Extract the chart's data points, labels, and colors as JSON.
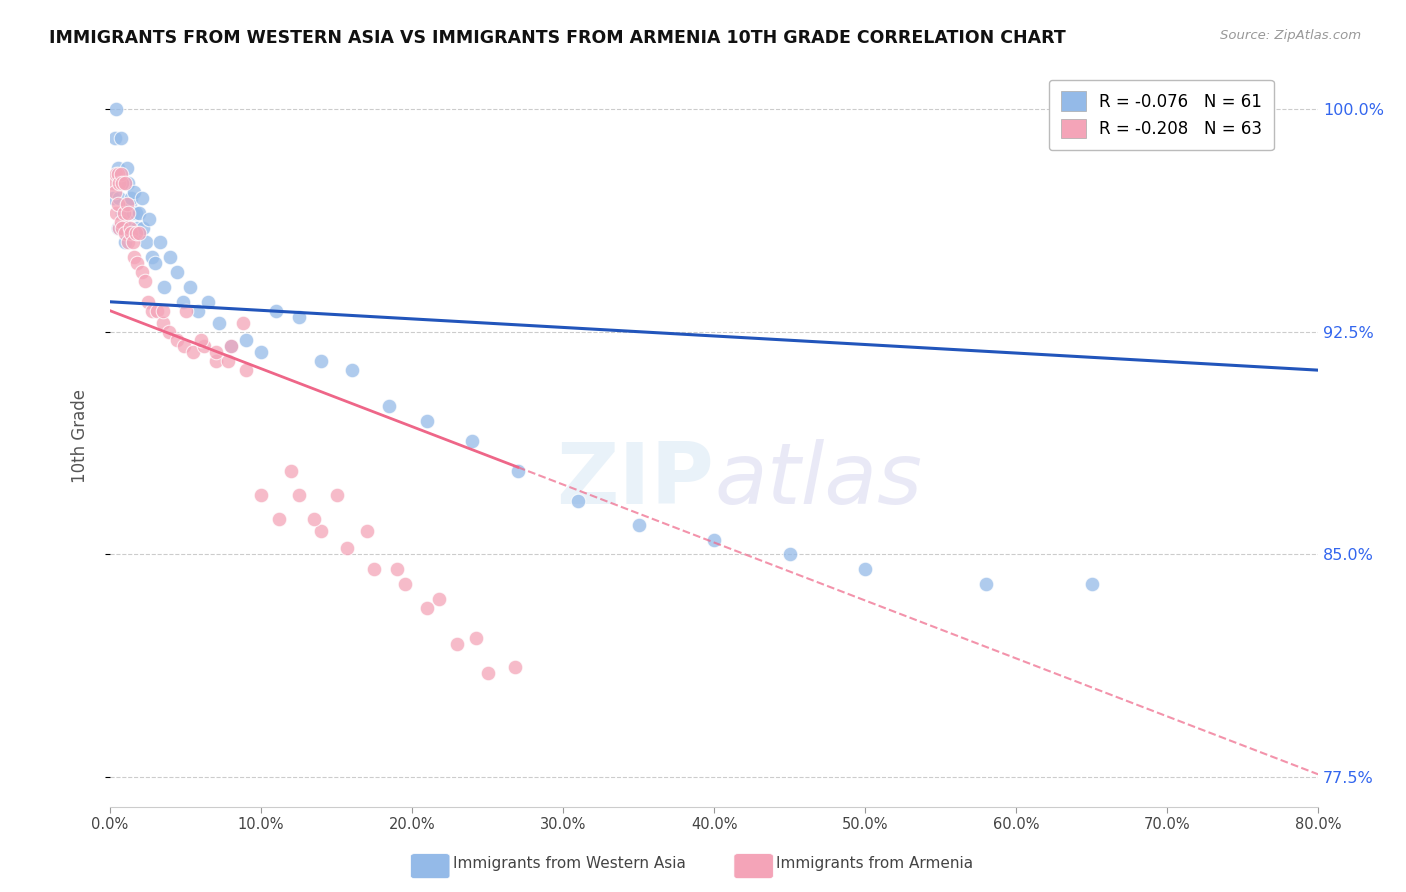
{
  "title": "IMMIGRANTS FROM WESTERN ASIA VS IMMIGRANTS FROM ARMENIA 10TH GRADE CORRELATION CHART",
  "source": "Source: ZipAtlas.com",
  "ylabel": "10th Grade",
  "yaxis_labels": [
    "77.5%",
    "85.0%",
    "92.5%",
    "100.0%"
  ],
  "yaxis_values": [
    0.775,
    0.85,
    0.925,
    1.0
  ],
  "xaxis_ticks": [
    0.0,
    0.1,
    0.2,
    0.3,
    0.4,
    0.5,
    0.6,
    0.7,
    0.8
  ],
  "legend_blue_r": "-0.076",
  "legend_blue_n": "61",
  "legend_pink_r": "-0.208",
  "legend_pink_n": "63",
  "blue_color": "#94BAE8",
  "pink_color": "#F4A4B8",
  "blue_line_color": "#2255BB",
  "pink_line_color": "#EE6688",
  "blue_line_x0": 0.0,
  "blue_line_y0": 0.935,
  "blue_line_x1": 0.8,
  "blue_line_y1": 0.912,
  "pink_line_x0": 0.0,
  "pink_line_y0": 0.932,
  "pink_line_x1": 0.8,
  "pink_line_y1": 0.776,
  "blue_scatter_x": [
    0.002,
    0.003,
    0.004,
    0.005,
    0.005,
    0.006,
    0.007,
    0.007,
    0.008,
    0.008,
    0.009,
    0.009,
    0.01,
    0.01,
    0.011,
    0.011,
    0.012,
    0.012,
    0.013,
    0.013,
    0.014,
    0.015,
    0.016,
    0.017,
    0.018,
    0.019,
    0.02,
    0.021,
    0.022,
    0.024,
    0.026,
    0.028,
    0.03,
    0.033,
    0.036,
    0.04,
    0.044,
    0.048,
    0.053,
    0.058,
    0.065,
    0.072,
    0.08,
    0.09,
    0.1,
    0.11,
    0.125,
    0.14,
    0.16,
    0.185,
    0.21,
    0.24,
    0.27,
    0.31,
    0.35,
    0.4,
    0.45,
    0.5,
    0.58,
    0.65,
    0.76
  ],
  "blue_scatter_y": [
    0.97,
    0.99,
    1.0,
    0.98,
    0.96,
    0.97,
    0.975,
    0.99,
    0.975,
    0.965,
    0.975,
    0.96,
    0.975,
    0.955,
    0.98,
    0.96,
    0.968,
    0.975,
    0.968,
    0.958,
    0.97,
    0.965,
    0.972,
    0.965,
    0.96,
    0.965,
    0.958,
    0.97,
    0.96,
    0.955,
    0.963,
    0.95,
    0.948,
    0.955,
    0.94,
    0.95,
    0.945,
    0.935,
    0.94,
    0.932,
    0.935,
    0.928,
    0.92,
    0.922,
    0.918,
    0.932,
    0.93,
    0.915,
    0.912,
    0.9,
    0.895,
    0.888,
    0.878,
    0.868,
    0.86,
    0.855,
    0.85,
    0.845,
    0.84,
    0.84,
    1.0
  ],
  "pink_scatter_x": [
    0.002,
    0.003,
    0.004,
    0.004,
    0.005,
    0.005,
    0.006,
    0.006,
    0.007,
    0.007,
    0.008,
    0.008,
    0.009,
    0.01,
    0.01,
    0.011,
    0.012,
    0.012,
    0.013,
    0.014,
    0.015,
    0.016,
    0.017,
    0.018,
    0.019,
    0.021,
    0.023,
    0.025,
    0.028,
    0.031,
    0.035,
    0.039,
    0.044,
    0.049,
    0.055,
    0.062,
    0.07,
    0.078,
    0.088,
    0.1,
    0.112,
    0.125,
    0.14,
    0.157,
    0.175,
    0.195,
    0.218,
    0.242,
    0.268,
    0.15,
    0.17,
    0.19,
    0.21,
    0.23,
    0.25,
    0.12,
    0.135,
    0.08,
    0.09,
    0.05,
    0.06,
    0.07,
    0.035
  ],
  "pink_scatter_y": [
    0.975,
    0.972,
    0.978,
    0.965,
    0.978,
    0.968,
    0.975,
    0.96,
    0.978,
    0.962,
    0.975,
    0.96,
    0.965,
    0.975,
    0.958,
    0.968,
    0.965,
    0.955,
    0.96,
    0.958,
    0.955,
    0.95,
    0.958,
    0.948,
    0.958,
    0.945,
    0.942,
    0.935,
    0.932,
    0.932,
    0.928,
    0.925,
    0.922,
    0.92,
    0.918,
    0.92,
    0.915,
    0.915,
    0.928,
    0.87,
    0.862,
    0.87,
    0.858,
    0.852,
    0.845,
    0.84,
    0.835,
    0.822,
    0.812,
    0.87,
    0.858,
    0.845,
    0.832,
    0.82,
    0.81,
    0.878,
    0.862,
    0.92,
    0.912,
    0.932,
    0.922,
    0.918,
    0.932
  ]
}
